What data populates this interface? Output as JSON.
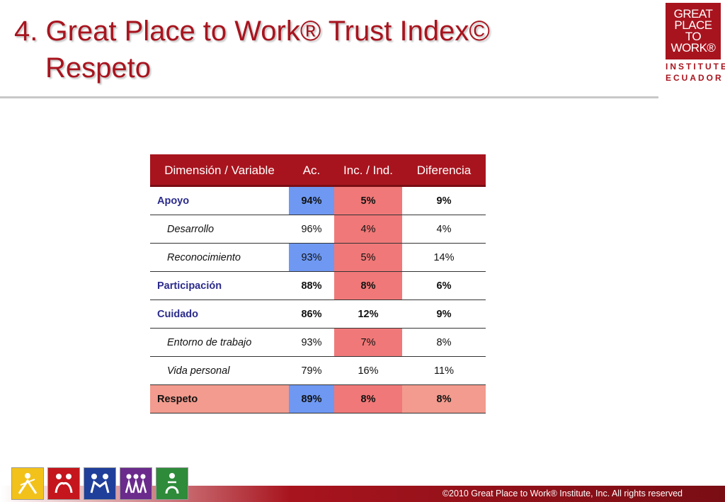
{
  "title": {
    "line1": "4. Great Place to Work® Trust Index©",
    "line2": "Respeto"
  },
  "logo": {
    "line1": "GREAT",
    "line2": "PLACE",
    "line3": "TO",
    "line4": "WORK®",
    "sub1": "INSTITUTE",
    "sub2": "ECUADOR"
  },
  "table": {
    "headers": [
      "Dimensión / Variable",
      "Ac.",
      "Inc. / Ind.",
      "Diferencia"
    ],
    "rows": [
      {
        "label": "Apoyo",
        "ac": "94%",
        "inc": "5%",
        "dif": "9%"
      },
      {
        "label": "Desarrollo",
        "ac": "96%",
        "inc": "4%",
        "dif": "4%"
      },
      {
        "label": "Reconocimiento",
        "ac": "93%",
        "inc": "5%",
        "dif": "14%"
      },
      {
        "label": "Participación",
        "ac": "88%",
        "inc": "8%",
        "dif": "6%"
      },
      {
        "label": "Cuidado",
        "ac": "86%",
        "inc": "12%",
        "dif": "9%"
      },
      {
        "label": "Entorno de trabajo",
        "ac": "93%",
        "inc": "7%",
        "dif": "8%"
      },
      {
        "label": "Vida personal",
        "ac": "79%",
        "inc": "16%",
        "dif": "11%"
      },
      {
        "label": "Respeto",
        "ac": "89%",
        "inc": "8%",
        "dif": "8%"
      }
    ]
  },
  "colors": {
    "brand": "#a8141e",
    "highlight_blue": "#6e98f2",
    "highlight_pink": "#f07878",
    "total_row": "#f29b8e",
    "dimension_text": "#2b2b8c"
  },
  "icons": [
    "yellow-figure-icon",
    "red-figure-icon",
    "blue-figure-icon",
    "purple-figure-icon",
    "green-figure-icon"
  ],
  "footer": "©2010 Great Place to Work® Institute, Inc. All rights reserved"
}
